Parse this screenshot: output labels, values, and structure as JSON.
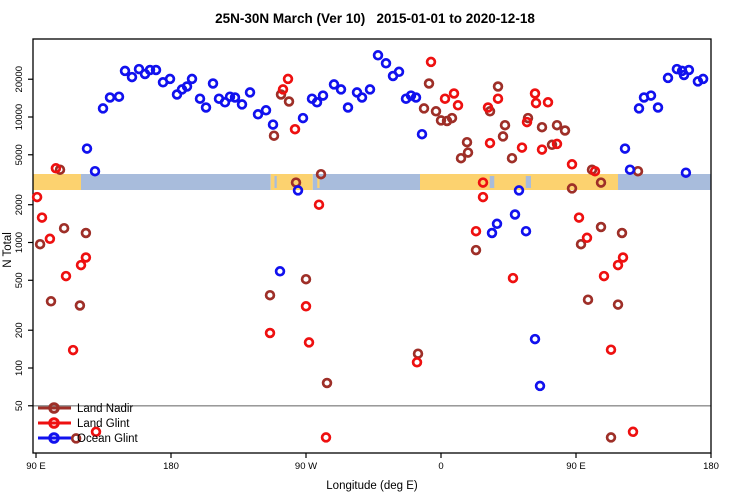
{
  "title": "25N-30N March (Ver 10)   2015-01-01 to 2020-12-18",
  "colors": {
    "land_nadir": "#9E2F28",
    "land_glint": "#EE1010",
    "ocean_glint": "#1111EE",
    "band_land": "#FCD26F",
    "band_ocean": "#A8BCDC",
    "refline": "#8C8C8C",
    "axis": "#000000"
  },
  "chart_data": {
    "type": "scatter",
    "title": "25N-30N March (Ver 10)   2015-01-01 to 2020-12-18",
    "xlabel": "Longitude (deg E)",
    "ylabel": "N Total",
    "x_axis": {
      "note": "longitude axis wraps eastward: 90E -> 180 -> 90W -> 0 -> 90E -> 180; deg is unwrapped position 90..540",
      "ticks": [
        {
          "label": "90 E",
          "deg": 90
        },
        {
          "label": "180",
          "deg": 180
        },
        {
          "label": "90 W",
          "deg": 270
        },
        {
          "label": "0",
          "deg": 360
        },
        {
          "label": "90 E",
          "deg": 450
        },
        {
          "label": "180",
          "deg": 540
        }
      ]
    },
    "y_axis": {
      "scale": "log10",
      "range": [
        20,
        40000
      ],
      "tick_values": [
        50,
        100,
        200,
        500,
        1000,
        2000,
        5000,
        10000,
        20000
      ],
      "tick_labels": [
        "50",
        "100",
        "200",
        "500",
        "1000",
        "2000",
        "5000",
        "10000",
        "20000"
      ]
    },
    "refline": {
      "n": 50,
      "color_key": "refline"
    },
    "surface_band": {
      "description": "land/ocean strip for the 25N-30N latitude belt",
      "n_top": 3500,
      "n_bottom": 2600,
      "segments": [
        {
          "surface": "land",
          "from": 88,
          "to": 120
        },
        {
          "surface": "ocean",
          "from": 120,
          "to": 246.5
        },
        {
          "surface": "land",
          "from": 246.5,
          "to": 274.5
        },
        {
          "surface": "ocean",
          "from": 274.5,
          "to": 346
        },
        {
          "surface": "land",
          "from": 346,
          "to": 478
        },
        {
          "surface": "ocean",
          "from": 478,
          "to": 540
        }
      ],
      "slivers": [
        {
          "surface": "ocean",
          "from": 249,
          "to": 250.5
        },
        {
          "surface": "land",
          "from": 277.5,
          "to": 279
        },
        {
          "surface": "ocean",
          "from": 392.5,
          "to": 395.5
        },
        {
          "surface": "ocean",
          "from": 416.5,
          "to": 420
        }
      ]
    },
    "legend": {
      "position": "bottom-left",
      "items": [
        {
          "label": "Land Nadir",
          "color_key": "land_nadir"
        },
        {
          "label": "Land Glint",
          "color_key": "land_glint"
        },
        {
          "label": "Ocean Glint",
          "color_key": "ocean_glint"
        }
      ]
    },
    "series": [
      {
        "name": "Land Nadir",
        "color_key": "land_nadir",
        "points": [
          [
            106,
            3800
          ],
          [
            92.7,
            970
          ],
          [
            108.7,
            1300
          ],
          [
            123.3,
            1190
          ],
          [
            100,
            340
          ],
          [
            119.3,
            315
          ],
          [
            116.7,
            27.5
          ],
          [
            253.3,
            15100
          ],
          [
            258.7,
            13300
          ],
          [
            248.7,
            7100
          ],
          [
            263.3,
            3000
          ],
          [
            280,
            3500
          ],
          [
            270,
            510
          ],
          [
            246,
            380
          ],
          [
            344.7,
            130
          ],
          [
            284,
            76
          ],
          [
            352,
            18500
          ],
          [
            348.7,
            11700
          ],
          [
            356.7,
            11100
          ],
          [
            360,
            9400
          ],
          [
            364,
            9300
          ],
          [
            367.3,
            9800
          ],
          [
            377.3,
            6300
          ],
          [
            373.3,
            4700
          ],
          [
            378,
            5200
          ],
          [
            383.3,
            870
          ],
          [
            398,
            17500
          ],
          [
            392.7,
            11100
          ],
          [
            402.7,
            8600
          ],
          [
            401.3,
            7000
          ],
          [
            418,
            9800
          ],
          [
            427.3,
            8300
          ],
          [
            437.3,
            8600
          ],
          [
            442.7,
            7800
          ],
          [
            434,
            6000
          ],
          [
            407.3,
            4700
          ],
          [
            460.7,
            3800
          ],
          [
            466.7,
            1330
          ],
          [
            453.3,
            970
          ],
          [
            480.7,
            1190
          ],
          [
            458,
            350
          ],
          [
            478,
            320
          ],
          [
            473.3,
            28
          ],
          [
            447.3,
            2700
          ],
          [
            466.7,
            3000
          ],
          [
            491.3,
            3700
          ]
        ]
      },
      {
        "name": "Land Glint",
        "color_key": "land_glint",
        "points": [
          [
            103.3,
            3900
          ],
          [
            90.7,
            2300
          ],
          [
            94,
            1580
          ],
          [
            99.3,
            1070
          ],
          [
            123.3,
            760
          ],
          [
            120,
            660
          ],
          [
            110,
            540
          ],
          [
            114.7,
            139
          ],
          [
            130,
            31
          ],
          [
            258,
            20100
          ],
          [
            254.7,
            16600
          ],
          [
            262.7,
            8000
          ],
          [
            278.7,
            2000
          ],
          [
            270,
            310
          ],
          [
            246,
            190
          ],
          [
            272,
            160
          ],
          [
            283.3,
            28
          ],
          [
            353.3,
            27500
          ],
          [
            362.7,
            14000
          ],
          [
            368.7,
            15400
          ],
          [
            371.3,
            12400
          ],
          [
            391.3,
            11900
          ],
          [
            388,
            2300
          ],
          [
            383.3,
            1230
          ],
          [
            344,
            111
          ],
          [
            388,
            3000
          ],
          [
            392.7,
            6200
          ],
          [
            398,
            14000
          ],
          [
            414,
            5700
          ],
          [
            417.3,
            9100
          ],
          [
            422.7,
            15400
          ],
          [
            423.3,
            12900
          ],
          [
            431.3,
            13100
          ],
          [
            427.3,
            5500
          ],
          [
            437.3,
            6100
          ],
          [
            447.3,
            4200
          ],
          [
            462.7,
            3700
          ],
          [
            452,
            1580
          ],
          [
            457.3,
            1090
          ],
          [
            481.3,
            760
          ],
          [
            478,
            660
          ],
          [
            468.7,
            540
          ],
          [
            408,
            520
          ],
          [
            473.3,
            140
          ],
          [
            488,
            31
          ]
        ]
      },
      {
        "name": "Ocean Glint",
        "color_key": "ocean_glint",
        "points": [
          [
            124,
            5600
          ],
          [
            129.3,
            3700
          ],
          [
            134.7,
            11700
          ],
          [
            139.3,
            14300
          ],
          [
            145.3,
            14500
          ],
          [
            149.3,
            23300
          ],
          [
            154,
            20800
          ],
          [
            158.7,
            24100
          ],
          [
            162.7,
            22000
          ],
          [
            166,
            23700
          ],
          [
            170,
            23700
          ],
          [
            174.7,
            18900
          ],
          [
            179.3,
            20100
          ],
          [
            184,
            15100
          ],
          [
            187.3,
            16600
          ],
          [
            190.7,
            17500
          ],
          [
            194,
            20100
          ],
          [
            199.3,
            14000
          ],
          [
            203.3,
            11900
          ],
          [
            208,
            18500
          ],
          [
            212,
            14000
          ],
          [
            216,
            13100
          ],
          [
            219.3,
            14500
          ],
          [
            222.7,
            14300
          ],
          [
            227.3,
            12600
          ],
          [
            232.7,
            15700
          ],
          [
            238,
            10500
          ],
          [
            243.3,
            11300
          ],
          [
            248,
            8700
          ],
          [
            268,
            9800
          ],
          [
            274,
            14000
          ],
          [
            277.3,
            13100
          ],
          [
            281.3,
            14800
          ],
          [
            288.7,
            18200
          ],
          [
            293.3,
            16600
          ],
          [
            298,
            11900
          ],
          [
            304,
            15700
          ],
          [
            307.3,
            14300
          ],
          [
            312.7,
            16600
          ],
          [
            318,
            31000
          ],
          [
            323.3,
            26800
          ],
          [
            328,
            21200
          ],
          [
            332,
            22900
          ],
          [
            336.7,
            14000
          ],
          [
            340,
            14800
          ],
          [
            343.3,
            14300
          ],
          [
            347.3,
            7300
          ],
          [
            264.7,
            2600
          ],
          [
            252.7,
            590
          ],
          [
            394,
            1190
          ],
          [
            397.3,
            1410
          ],
          [
            409.3,
            1670
          ],
          [
            416.7,
            1230
          ],
          [
            422.7,
            170
          ],
          [
            426,
            72
          ],
          [
            412,
            2600
          ],
          [
            523.3,
            3600
          ],
          [
            482.7,
            5600
          ],
          [
            486,
            3800
          ],
          [
            492,
            11700
          ],
          [
            495.3,
            14300
          ],
          [
            500,
            14800
          ],
          [
            504.7,
            11900
          ],
          [
            511.3,
            20500
          ],
          [
            517.3,
            24100
          ],
          [
            520.7,
            23300
          ],
          [
            522,
            21600
          ],
          [
            525.3,
            23700
          ],
          [
            531.3,
            19200
          ],
          [
            534.7,
            20100
          ]
        ]
      }
    ]
  }
}
